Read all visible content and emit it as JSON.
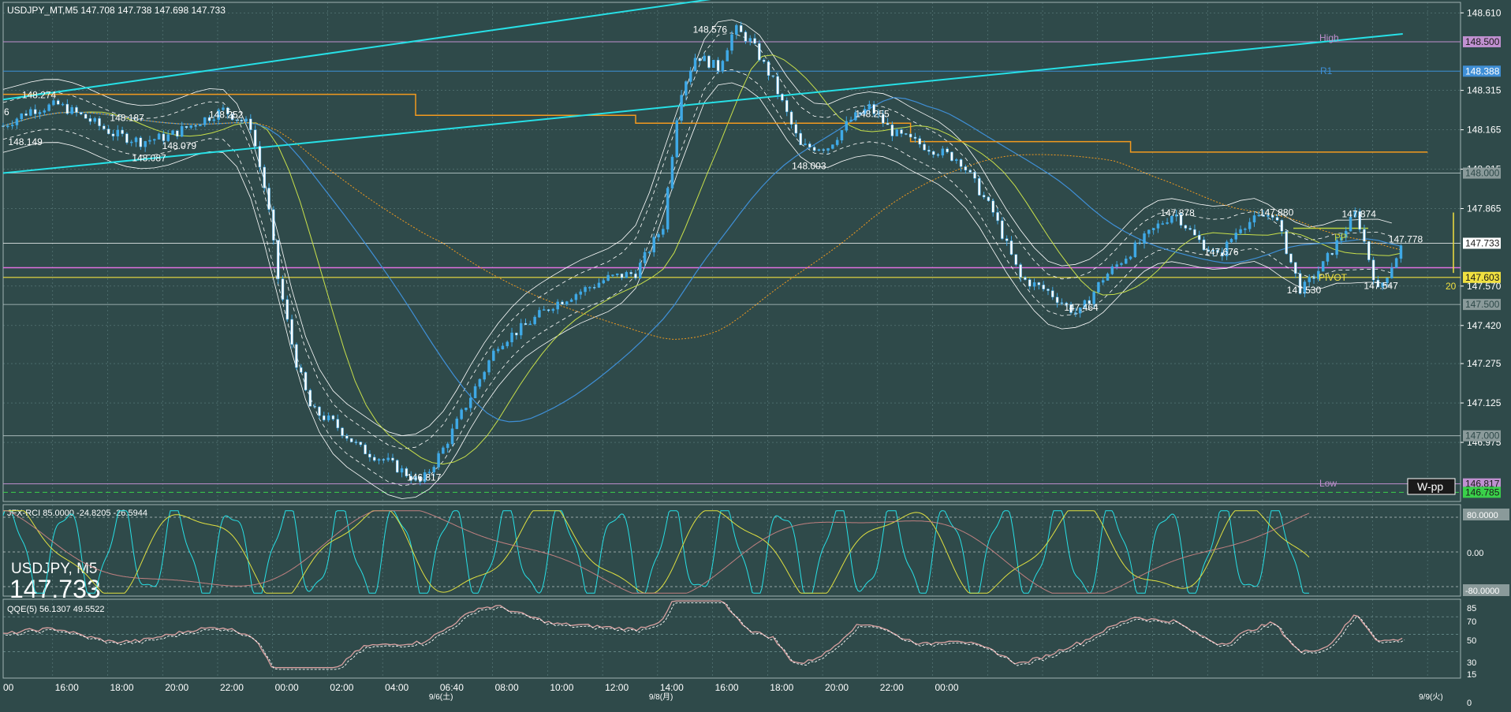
{
  "colors": {
    "background": "#2f4a4a",
    "grid": "#7fa3a3",
    "candle": "#3fa9e6",
    "trendline": "#27e0e6",
    "band": "#ffffff",
    "orange": "#f39a1e",
    "yellow_ma": "#c8e04a",
    "blue_ma": "#3f8fd6",
    "pivot": "#f0e040",
    "high_line": "#c090d0",
    "r1_line": "#3f8fd6",
    "rci_fast": "#27e0e6",
    "rci_mid": "#e0e040",
    "rci_slow": "#c08080",
    "qqe_main": "#d8a0a0",
    "qqe_signal": "#ffffff"
  },
  "main": {
    "header": "USDJPY_MT,M5  147.708 147.738 147.698 147.733",
    "left_edge_label": "6",
    "symbol_label": "USDJPY, M5",
    "big_price": "147.733",
    "price_ticks": [
      "148.610",
      "148.315",
      "148.165",
      "148.015",
      "147.865",
      "147.570",
      "147.420",
      "147.275",
      "147.125",
      "146.975"
    ],
    "price_badges": [
      {
        "key": "high",
        "text": "148.500",
        "bg": "#c090d0",
        "fg": "#1a1a1a",
        "price": 148.5
      },
      {
        "key": "r1",
        "text": "148.388",
        "bg": "#3f8fd6",
        "fg": "#ffffff",
        "price": 148.388
      },
      {
        "key": "level148",
        "text": "148.000",
        "bg": "#8a9a9a",
        "fg": "#2f4a4a",
        "price": 148.0
      },
      {
        "key": "current",
        "text": "147.733",
        "bg": "#ffffff",
        "fg": "#1a1a1a",
        "price": 147.733
      },
      {
        "key": "pivot",
        "text": "147.603",
        "bg": "#f0e040",
        "fg": "#1a1a1a",
        "price": 147.603
      },
      {
        "key": "level1475",
        "text": "147.500",
        "bg": "#8a9a9a",
        "fg": "#2f4a4a",
        "price": 147.5
      },
      {
        "key": "level147",
        "text": "147.000",
        "bg": "#8a9a9a",
        "fg": "#2f4a4a",
        "price": 147.0
      },
      {
        "key": "low",
        "text": "146.817",
        "bg": "#c090d0",
        "fg": "#1a1a1a",
        "price": 146.817
      },
      {
        "key": "s1",
        "text": "146.785",
        "bg": "#3ad04a",
        "fg": "#1a1a1a",
        "price": 146.785
      }
    ],
    "level_labels": {
      "high": "High",
      "r1": "R1",
      "pp": "PP",
      "pivot": "PIVOT",
      "low": "Low",
      "wpp": "W-pp",
      "twenty": "20"
    },
    "swing_labels": [
      {
        "text": "148.274",
        "price": 148.274,
        "t": 0.6
      },
      {
        "text": "148.149",
        "price": 148.149,
        "t": 0.35
      },
      {
        "text": "148.187",
        "price": 148.187,
        "t": 2.2
      },
      {
        "text": "148.087",
        "price": 148.087,
        "t": 2.6
      },
      {
        "text": "148.079",
        "price": 148.079,
        "t": 3.15
      },
      {
        "text": "148.252",
        "price": 148.252,
        "t": 4.0
      },
      {
        "text": "146.817",
        "price": 146.817,
        "t": 7.6
      },
      {
        "text": "148.576",
        "price": 148.576,
        "t": 12.8
      },
      {
        "text": "148.003",
        "price": 148.003,
        "t": 14.6
      },
      {
        "text": "148.255",
        "price": 148.255,
        "t": 15.75
      },
      {
        "text": "147.464",
        "price": 147.464,
        "t": 19.55
      },
      {
        "text": "147.878",
        "price": 147.878,
        "t": 21.3
      },
      {
        "text": "147.676",
        "price": 147.676,
        "t": 22.1
      },
      {
        "text": "147.880",
        "price": 147.88,
        "t": 23.1
      },
      {
        "text": "147.530",
        "price": 147.53,
        "t": 23.6
      },
      {
        "text": "147.874",
        "price": 147.874,
        "t": 24.6
      },
      {
        "text": "147.547",
        "price": 147.547,
        "t": 25.0
      },
      {
        "text": "147.778",
        "price": 147.778,
        "t": 25.45
      }
    ]
  },
  "time_axis": {
    "ticks": [
      "00",
      "16:00",
      "18:00",
      "20:00",
      "22:00",
      "00:00",
      "02:00",
      "04:00",
      "06:40",
      "08:00",
      "10:00",
      "12:00",
      "14:00",
      "16:00",
      "18:00",
      "20:00",
      "22:00",
      "00:00"
    ],
    "dates": [
      {
        "text": "9/6(土)",
        "t": 8.0
      },
      {
        "text": "9/8(月)",
        "t": 12.0
      },
      {
        "text": "9/9(火)",
        "t": 26.0
      }
    ]
  },
  "rci": {
    "header": "JFX-RCI 85.0000 -24.8205 -26.5944",
    "ticks": [
      "80.0000",
      "0.00",
      "-80.0000"
    ]
  },
  "qqe": {
    "header": "QQE(5) 56.1307 49.5522",
    "ticks": [
      "85",
      "70",
      "50",
      "30",
      "15",
      "0"
    ]
  },
  "chart_data": {
    "type": "line",
    "title": "USDJPY_MT,M5",
    "x_unit": "hours from 15:00 (two-hour grid spacing)",
    "series": [
      {
        "name": "USDJPY_MT,M5 close",
        "x": [
          0,
          0.5,
          1,
          1.5,
          2,
          2.5,
          3,
          3.5,
          4,
          4.5,
          4.8,
          5,
          5.3,
          5.6,
          6,
          6.5,
          7,
          7.6,
          8,
          8.5,
          9,
          9.5,
          10,
          10.5,
          11,
          11.5,
          12,
          12.3,
          12.6,
          13,
          13.3,
          13.6,
          14,
          14.5,
          15,
          15.4,
          15.75,
          16.2,
          16.8,
          17.4,
          18,
          18.5,
          19,
          19.55,
          20,
          20.5,
          21,
          21.3,
          21.7,
          22.1,
          22.5,
          23.1,
          23.6,
          24,
          24.6,
          25,
          25.45
        ],
        "y": [
          148.18,
          148.24,
          148.26,
          148.21,
          148.15,
          148.12,
          148.14,
          148.19,
          148.24,
          148.18,
          147.9,
          147.6,
          147.3,
          147.1,
          147.05,
          146.95,
          146.9,
          146.82,
          146.95,
          147.15,
          147.35,
          147.42,
          147.5,
          147.55,
          147.6,
          147.62,
          147.8,
          148.3,
          148.45,
          148.4,
          148.55,
          148.5,
          148.35,
          148.1,
          148.1,
          148.2,
          148.25,
          148.15,
          148.1,
          148.05,
          147.85,
          147.6,
          147.55,
          147.46,
          147.6,
          147.7,
          147.8,
          147.85,
          147.75,
          147.68,
          147.8,
          147.85,
          147.55,
          147.65,
          147.85,
          147.55,
          147.73
        ]
      },
      {
        "name": "",
        "x": [
          0,
          25.45
        ],
        "y": [
          148.0,
          148.53
        ]
      }
    ],
    "xlim": [
      0,
      26.5
    ],
    "ylim": [
      146.75,
      148.65
    ],
    "grid": true
  }
}
